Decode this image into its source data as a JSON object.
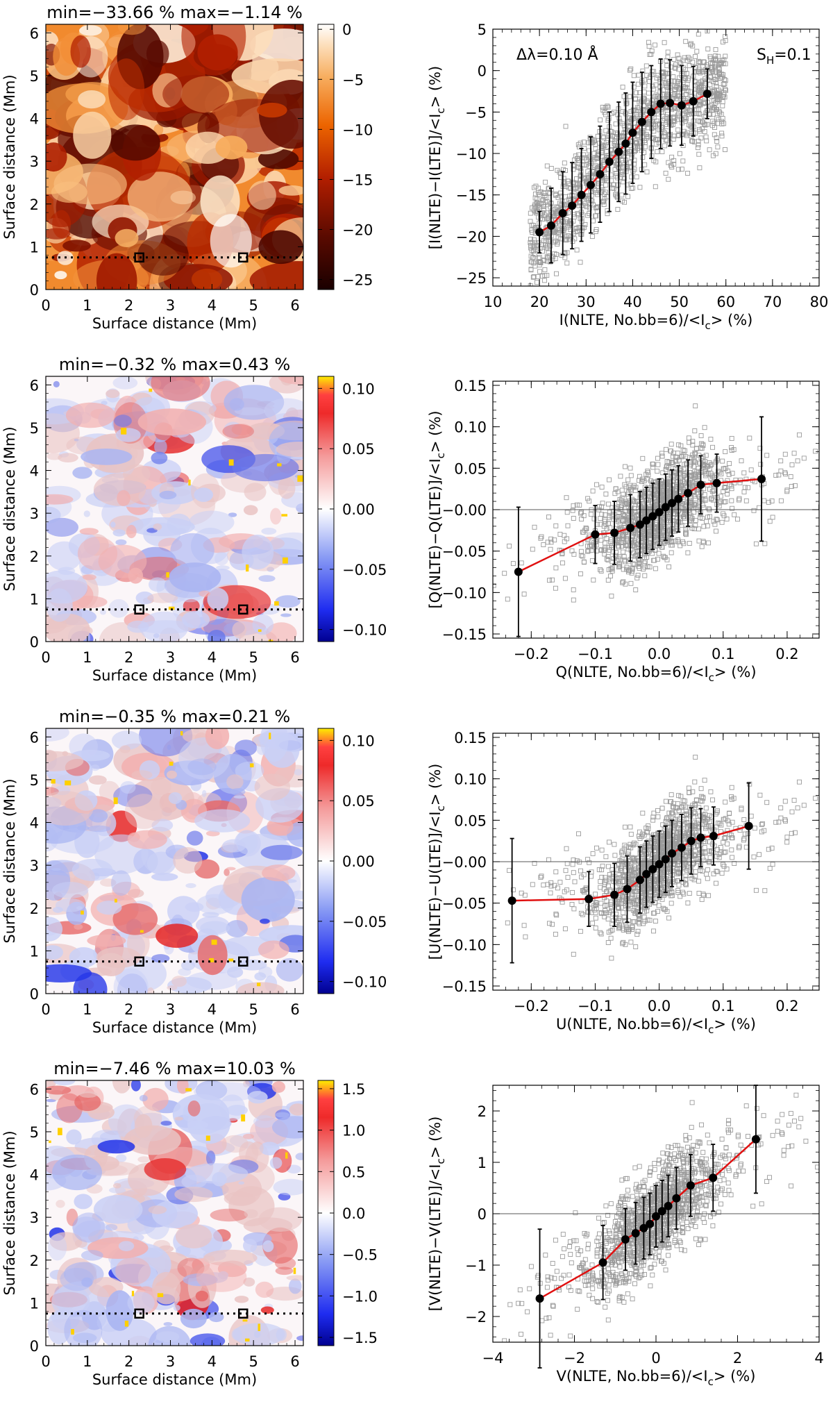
{
  "chart_data": [
    {
      "type": "heatmap",
      "title": "min=−33.66 % max=−1.14 %",
      "xlabel": "Surface distance (Mm)",
      "ylabel": "Surface distance (Mm)",
      "xlim": [
        0,
        6.2
      ],
      "ylim": [
        0,
        6.2
      ],
      "xticks": [
        "0",
        "1",
        "2",
        "3",
        "4",
        "5",
        "6"
      ],
      "yticks": [
        "0",
        "1",
        "2",
        "3",
        "4",
        "5",
        "6"
      ],
      "colormap": "heat",
      "colorbar": {
        "range": [
          -26,
          0.5
        ],
        "ticks": [
          {
            "v": 0,
            "label": "0"
          },
          {
            "v": -5,
            "label": "−5"
          },
          {
            "v": -10,
            "label": "−10"
          },
          {
            "v": -15,
            "label": "−15"
          },
          {
            "v": -20,
            "label": "−20"
          },
          {
            "v": -25,
            "label": "−25"
          }
        ]
      },
      "dotted_line_y": 0.75,
      "markers": [
        [
          2.25,
          0.75
        ],
        [
          4.75,
          0.75
        ]
      ]
    },
    {
      "type": "scatter",
      "annotation_left": "Δλ=0.10 Å",
      "annotation_right": "S",
      "annotation_right_sub": "H",
      "annotation_right_tail": "=0.1",
      "xlabel": "I(NLTE, No.bb=6)/<I",
      "xlabel_sub": "c",
      "xlabel_tail": "> (%)",
      "ylabel": "[I(NLTE)−I(LTE)]/<I",
      "ylabel_sub": "c",
      "ylabel_tail": "> (%)",
      "xlim": [
        10,
        80
      ],
      "ylim": [
        -26,
        5
      ],
      "xticks": [
        {
          "v": 10,
          "label": "10"
        },
        {
          "v": 20,
          "label": "20"
        },
        {
          "v": 30,
          "label": "30"
        },
        {
          "v": 40,
          "label": "40"
        },
        {
          "v": 50,
          "label": "50"
        },
        {
          "v": 60,
          "label": "60"
        },
        {
          "v": 70,
          "label": "70"
        },
        {
          "v": 80,
          "label": "80"
        }
      ],
      "yticks": [
        {
          "v": 5,
          "label": "5"
        },
        {
          "v": 0,
          "label": "0"
        },
        {
          "v": -5,
          "label": "−5"
        },
        {
          "v": -10,
          "label": "−10"
        },
        {
          "v": -15,
          "label": "−15"
        },
        {
          "v": -20,
          "label": "−20"
        },
        {
          "v": -25,
          "label": "−25"
        }
      ],
      "zero_line": false,
      "binned_mean": {
        "x": [
          20,
          22.5,
          25,
          27,
          29,
          31,
          33,
          35,
          37,
          38.5,
          40,
          42,
          44,
          46,
          48,
          50.5,
          53,
          56
        ],
        "y": [
          -19.5,
          -18.7,
          -17.2,
          -16.3,
          -15,
          -13.8,
          -12.5,
          -11,
          -9.8,
          -8.8,
          -7.5,
          -6.2,
          -5,
          -4,
          -3.9,
          -4.2,
          -3.7,
          -2.8
        ],
        "err": [
          2.5,
          4.5,
          5,
          5.2,
          5.6,
          5.8,
          5.8,
          6,
          6,
          6.1,
          6.1,
          6,
          5.6,
          5.4,
          5.2,
          4.8,
          4.2,
          3
        ]
      }
    },
    {
      "type": "heatmap",
      "title": "min=−0.32 % max=0.43 %",
      "xlabel": "Surface distance (Mm)",
      "ylabel": "Surface distance (Mm)",
      "xlim": [
        0,
        6.2
      ],
      "ylim": [
        0,
        6.2
      ],
      "xticks": [
        "0",
        "1",
        "2",
        "3",
        "4",
        "5",
        "6"
      ],
      "yticks": [
        "0",
        "1",
        "2",
        "3",
        "4",
        "5",
        "6"
      ],
      "colormap": "diverging",
      "colorbar": {
        "range": [
          -0.11,
          0.11
        ],
        "ticks": [
          {
            "v": 0.1,
            "label": "0.10"
          },
          {
            "v": 0.05,
            "label": "0.05"
          },
          {
            "v": 0.0,
            "label": "0.00"
          },
          {
            "v": -0.05,
            "label": "−0.05"
          },
          {
            "v": -0.1,
            "label": "−0.10"
          }
        ]
      },
      "dotted_line_y": 0.75,
      "markers": [
        [
          2.25,
          0.75
        ],
        [
          4.75,
          0.75
        ]
      ]
    },
    {
      "type": "scatter",
      "xlabel": "Q(NLTE, No.bb=6)/<I",
      "xlabel_sub": "c",
      "xlabel_tail": "> (%)",
      "ylabel": "[Q(NLTE)−Q(LTE)]/<I",
      "ylabel_sub": "c",
      "ylabel_tail": "> (%)",
      "xlim": [
        -0.26,
        0.25
      ],
      "ylim": [
        -0.155,
        0.155
      ],
      "xticks": [
        {
          "v": -0.2,
          "label": "−0.2"
        },
        {
          "v": -0.1,
          "label": "−0.1"
        },
        {
          "v": 0,
          "label": "0.0"
        },
        {
          "v": 0.1,
          "label": "0.1"
        },
        {
          "v": 0.2,
          "label": "0.2"
        }
      ],
      "yticks": [
        {
          "v": 0.15,
          "label": "0.15"
        },
        {
          "v": 0.1,
          "label": "0.10"
        },
        {
          "v": 0.05,
          "label": "0.05"
        },
        {
          "v": 0,
          "label": "−0.00"
        },
        {
          "v": -0.05,
          "label": "−0.05"
        },
        {
          "v": -0.1,
          "label": "−0.10"
        },
        {
          "v": -0.15,
          "label": "−0.15"
        }
      ],
      "zero_line": true,
      "binned_mean": {
        "x": [
          -0.22,
          -0.1,
          -0.07,
          -0.045,
          -0.03,
          -0.02,
          -0.01,
          0,
          0.01,
          0.02,
          0.03,
          0.045,
          0.065,
          0.09,
          0.16
        ],
        "y": [
          -0.075,
          -0.03,
          -0.028,
          -0.022,
          -0.018,
          -0.013,
          -0.008,
          -0.003,
          0.003,
          0.008,
          0.013,
          0.02,
          0.03,
          0.032,
          0.037
        ],
        "err": [
          0.078,
          0.035,
          0.038,
          0.04,
          0.04,
          0.04,
          0.04,
          0.04,
          0.04,
          0.04,
          0.04,
          0.04,
          0.035,
          0.035,
          0.075
        ]
      }
    },
    {
      "type": "heatmap",
      "title": "min=−0.35 % max=0.21 %",
      "xlabel": "Surface distance (Mm)",
      "ylabel": "Surface distance (Mm)",
      "xlim": [
        0,
        6.2
      ],
      "ylim": [
        0,
        6.2
      ],
      "xticks": [
        "0",
        "1",
        "2",
        "3",
        "4",
        "5",
        "6"
      ],
      "yticks": [
        "0",
        "1",
        "2",
        "3",
        "4",
        "5",
        "6"
      ],
      "colormap": "diverging",
      "colorbar": {
        "range": [
          -0.11,
          0.11
        ],
        "ticks": [
          {
            "v": 0.1,
            "label": "0.10"
          },
          {
            "v": 0.05,
            "label": "0.05"
          },
          {
            "v": 0.0,
            "label": "0.00"
          },
          {
            "v": -0.05,
            "label": "−0.05"
          },
          {
            "v": -0.1,
            "label": "−0.10"
          }
        ]
      },
      "dotted_line_y": 0.75,
      "markers": [
        [
          2.25,
          0.75
        ],
        [
          4.75,
          0.75
        ]
      ]
    },
    {
      "type": "scatter",
      "xlabel": "U(NLTE, No.bb=6)/<I",
      "xlabel_sub": "c",
      "xlabel_tail": "> (%)",
      "ylabel": "[U(NLTE)−U(LTE)]/<I",
      "ylabel_sub": "c",
      "ylabel_tail": "> (%)",
      "xlim": [
        -0.26,
        0.25
      ],
      "ylim": [
        -0.155,
        0.155
      ],
      "xticks": [
        {
          "v": -0.2,
          "label": "−0.2"
        },
        {
          "v": -0.1,
          "label": "−0.1"
        },
        {
          "v": 0,
          "label": "0.0"
        },
        {
          "v": 0.1,
          "label": "0.1"
        },
        {
          "v": 0.2,
          "label": "0.2"
        }
      ],
      "yticks": [
        {
          "v": 0.15,
          "label": "0.15"
        },
        {
          "v": 0.1,
          "label": "0.10"
        },
        {
          "v": 0.05,
          "label": "0.05"
        },
        {
          "v": 0,
          "label": "−0.00"
        },
        {
          "v": -0.05,
          "label": "−0.05"
        },
        {
          "v": -0.1,
          "label": "−0.10"
        },
        {
          "v": -0.15,
          "label": "−0.15"
        }
      ],
      "zero_line": true,
      "binned_mean": {
        "x": [
          -0.23,
          -0.11,
          -0.07,
          -0.05,
          -0.03,
          -0.02,
          -0.01,
          0,
          0.01,
          0.02,
          0.035,
          0.05,
          0.065,
          0.085,
          0.14
        ],
        "y": [
          -0.047,
          -0.045,
          -0.04,
          -0.033,
          -0.022,
          -0.015,
          -0.009,
          -0.003,
          0.003,
          0.01,
          0.017,
          0.025,
          0.029,
          0.031,
          0.043
        ],
        "err": [
          0.075,
          0.033,
          0.038,
          0.04,
          0.04,
          0.04,
          0.04,
          0.04,
          0.04,
          0.04,
          0.04,
          0.04,
          0.035,
          0.035,
          0.052
        ]
      }
    },
    {
      "type": "heatmap",
      "title": "min=−7.46 % max=10.03 %",
      "xlabel": "Surface distance (Mm)",
      "ylabel": "Surface distance (Mm)",
      "xlim": [
        0,
        6.2
      ],
      "ylim": [
        0,
        6.2
      ],
      "xticks": [
        "0",
        "1",
        "2",
        "3",
        "4",
        "5",
        "6"
      ],
      "yticks": [
        "0",
        "1",
        "2",
        "3",
        "4",
        "5",
        "6"
      ],
      "colormap": "diverging",
      "colorbar": {
        "range": [
          -1.6,
          1.6
        ],
        "ticks": [
          {
            "v": 1.5,
            "label": "1.5"
          },
          {
            "v": 1.0,
            "label": "1.0"
          },
          {
            "v": 0.5,
            "label": "0.5"
          },
          {
            "v": 0.0,
            "label": "0.0"
          },
          {
            "v": -0.5,
            "label": "−0.5"
          },
          {
            "v": -1.0,
            "label": "−1.0"
          },
          {
            "v": -1.5,
            "label": "−1.5"
          }
        ]
      },
      "dotted_line_y": 0.75,
      "markers": [
        [
          2.25,
          0.75
        ],
        [
          4.75,
          0.75
        ]
      ]
    },
    {
      "type": "scatter",
      "xlabel": "V(NLTE, No.bb=6)/<I",
      "xlabel_sub": "c",
      "xlabel_tail": "> (%)",
      "ylabel": "[V(NLTE)−V(LTE)]/<I",
      "ylabel_sub": "c",
      "ylabel_tail": "> (%)",
      "xlim": [
        -4,
        4
      ],
      "ylim": [
        -2.5,
        2.5
      ],
      "xticks": [
        {
          "v": -4,
          "label": "−4"
        },
        {
          "v": -2,
          "label": "−2"
        },
        {
          "v": 0,
          "label": "0"
        },
        {
          "v": 2,
          "label": "2"
        },
        {
          "v": 4,
          "label": "4"
        }
      ],
      "yticks": [
        {
          "v": 2,
          "label": "2"
        },
        {
          "v": 1,
          "label": "1"
        },
        {
          "v": 0,
          "label": "0"
        },
        {
          "v": -1,
          "label": "−1"
        },
        {
          "v": -2,
          "label": "−2"
        }
      ],
      "zero_line": true,
      "binned_mean": {
        "x": [
          -2.85,
          -1.3,
          -0.75,
          -0.5,
          -0.3,
          -0.15,
          0,
          0.15,
          0.3,
          0.5,
          0.85,
          1.4,
          2.45
        ],
        "y": [
          -1.65,
          -0.95,
          -0.5,
          -0.38,
          -0.28,
          -0.2,
          -0.05,
          0.05,
          0.15,
          0.3,
          0.55,
          0.7,
          1.45
        ],
        "err": [
          1.35,
          0.72,
          0.6,
          0.6,
          0.6,
          0.6,
          0.6,
          0.6,
          0.6,
          0.6,
          0.6,
          0.65,
          1.05
        ]
      }
    }
  ]
}
